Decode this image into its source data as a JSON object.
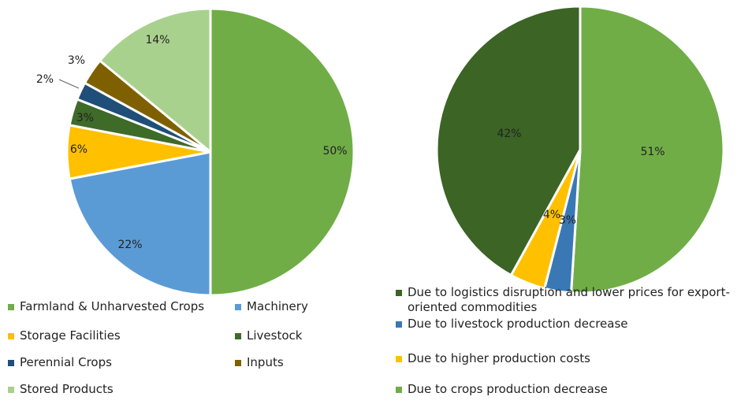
{
  "chart_data": [
    {
      "type": "pie",
      "categories": [
        "Farmland & Unharvested Crops",
        "Machinery",
        "Storage Facilities",
        "Livestock",
        "Perennial  Crops",
        "Inputs",
        "Stored Products"
      ],
      "values": [
        50,
        22,
        6,
        3,
        2,
        3,
        14
      ],
      "value_labels": [
        "50%",
        "22%",
        "6%",
        "3%",
        "2%",
        "3%",
        "14%"
      ],
      "colors": [
        "#70ad47",
        "#5b9bd5",
        "#ffc000",
        "#3e6b28",
        "#1f4e79",
        "#7f6000",
        "#a9d18e"
      ]
    },
    {
      "type": "pie",
      "categories": [
        "Due to crops production decrease",
        "Due to livestock production decrease",
        "Due to higher production costs",
        "Due to logistics disruption and lower prices for export-oriented commodities"
      ],
      "values": [
        51,
        3,
        4,
        42
      ],
      "value_labels": [
        "51%",
        "3%",
        "4%",
        "42%"
      ],
      "colors": [
        "#70ad47",
        "#3a78b5",
        "#ffc000",
        "#3b6425"
      ]
    }
  ]
}
